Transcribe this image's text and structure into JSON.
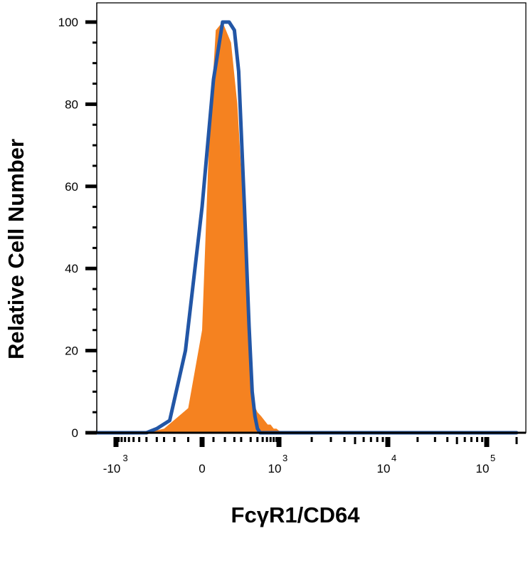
{
  "chart_data": {
    "type": "area",
    "xlabel": "FcγR1/CD64",
    "ylabel": "Relative Cell Number",
    "ylim": [
      0,
      100
    ],
    "x_scale": "biexponential",
    "xlim": [
      -2000,
      200000
    ],
    "y_ticks": [
      {
        "value": 0,
        "label": "0"
      },
      {
        "value": 20,
        "label": "20"
      },
      {
        "value": 40,
        "label": "40"
      },
      {
        "value": 60,
        "label": "60"
      },
      {
        "value": 80,
        "label": "80"
      },
      {
        "value": 100,
        "label": "100"
      }
    ],
    "x_ticks": [
      {
        "value": -1000,
        "base": "-10",
        "exp": "3"
      },
      {
        "value": 0,
        "base": "0",
        "exp": ""
      },
      {
        "value": 1000,
        "base": "10",
        "exp": "3"
      },
      {
        "value": 10000,
        "base": "10",
        "exp": "4"
      },
      {
        "value": 100000,
        "base": "10",
        "exp": "5"
      }
    ],
    "grid": false,
    "legend": false,
    "series": [
      {
        "style": "filled",
        "color": "#f58220",
        "x": [
          -300,
          -150,
          -50,
          0,
          30,
          60,
          90,
          130,
          170,
          220,
          280,
          340,
          400,
          470,
          540,
          620,
          700,
          800,
          900,
          1000,
          1200,
          200000
        ],
        "y": [
          0,
          1,
          6,
          25,
          70,
          98,
          100,
          95,
          80,
          55,
          25,
          7,
          5,
          4,
          3,
          2,
          2,
          1,
          1,
          0.5,
          0,
          0
        ]
      },
      {
        "style": "line",
        "color": "#2256a6",
        "x": [
          -2000,
          -300,
          -200,
          -120,
          -60,
          0,
          50,
          90,
          120,
          150,
          180,
          230,
          280,
          320,
          360,
          400,
          450,
          520,
          600,
          200000
        ],
        "y": [
          0,
          0,
          1,
          3,
          20,
          55,
          86,
          100,
          100,
          98,
          88,
          55,
          26,
          10,
          4,
          1,
          0,
          0,
          0,
          0
        ]
      }
    ]
  }
}
